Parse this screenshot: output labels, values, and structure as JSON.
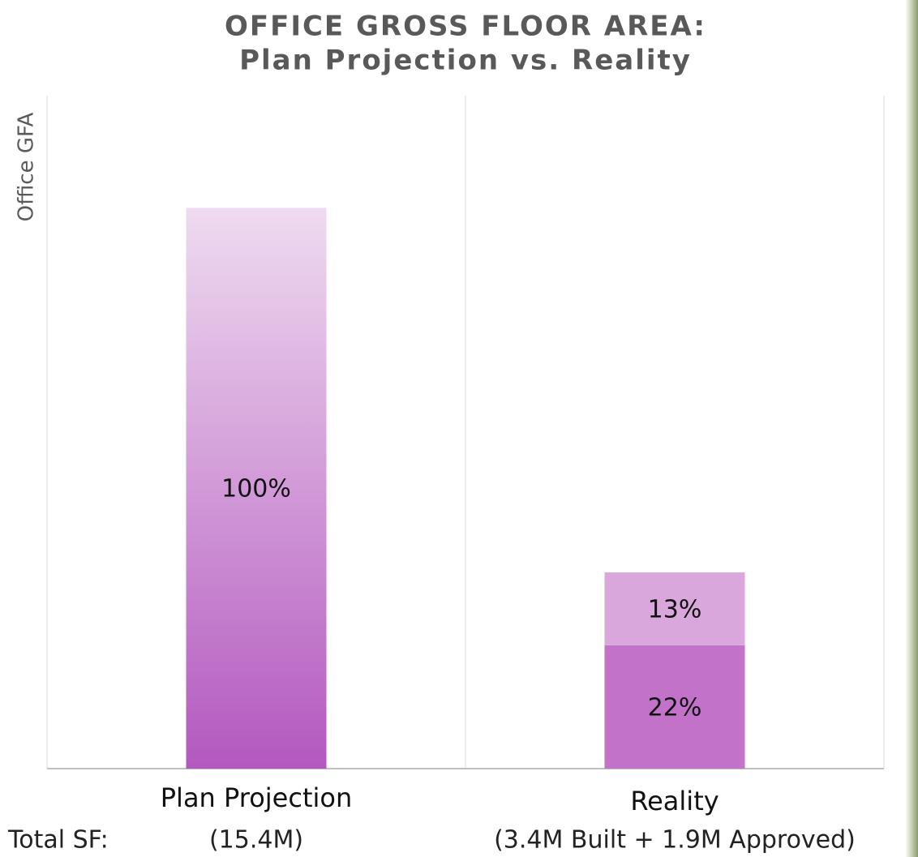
{
  "chart_data": {
    "type": "stacked_bar",
    "title": "OFFICE GROSS FLOOR AREA:",
    "subtitle": "Plan Projection vs. Reality",
    "y_label": "Office GFA",
    "categories": [
      "Plan Projection",
      "Reality"
    ],
    "series": [
      {
        "colors": [
          [
            "#efdbf0",
            "#b358bf"
          ],
          "#c272c8"
        ],
        "values": [
          100,
          22
        ],
        "value_labels": [
          "100%",
          "22%"
        ]
      },
      {
        "colors": [
          null,
          "#d9a7db"
        ],
        "values": [
          null,
          13
        ],
        "value_labels": [
          null,
          "13%"
        ]
      }
    ],
    "ylim": [
      0,
      120
    ],
    "footer": {
      "label": "Total SF:",
      "notes": [
        "(15.4M)",
        "(3.4M Built + 1.9M Approved)"
      ]
    }
  }
}
